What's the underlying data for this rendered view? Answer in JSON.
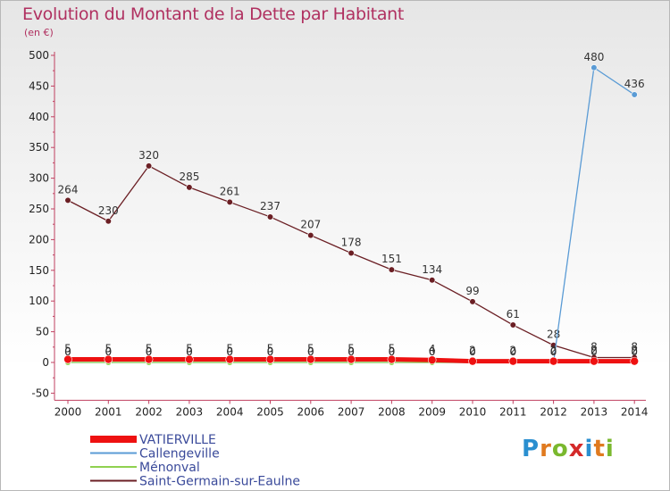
{
  "title": "Evolution du Montant de la Dette par Habitant",
  "subtitle": "(en €)",
  "logo": {
    "text": "Proxiti",
    "letter_colors": [
      "#2a8fd0",
      "#e07a1f",
      "#7ab82e",
      "#d42a2a",
      "#2a8fd0",
      "#e07a1f",
      "#7ab82e"
    ]
  },
  "chart_data": {
    "type": "line",
    "x": [
      "2000",
      "2001",
      "2002",
      "2003",
      "2004",
      "2005",
      "2006",
      "2007",
      "2008",
      "2009",
      "2010",
      "2011",
      "2012",
      "2013",
      "2014"
    ],
    "ylim": [
      -50,
      500
    ],
    "yticks": [
      -50,
      0,
      50,
      100,
      150,
      200,
      250,
      300,
      350,
      400,
      450,
      500
    ],
    "grid": false,
    "legend_position": "bottom-left",
    "series": [
      {
        "name": "Saint-Germain-sur-Eaulne",
        "color": "#6b1f24",
        "values": [
          264,
          230,
          320,
          285,
          261,
          237,
          207,
          178,
          151,
          134,
          99,
          61,
          28,
          8,
          8
        ],
        "labels": [
          "264",
          "230",
          "320",
          "285",
          "261",
          "237",
          "207",
          "178",
          "151",
          "134",
          "99",
          "61",
          "28",
          "8",
          "8"
        ]
      },
      {
        "name": "Callengeville",
        "color": "#5a9bd5",
        "values": [
          0,
          0,
          0,
          0,
          0,
          0,
          0,
          0,
          0,
          0,
          0,
          0,
          0,
          480,
          436
        ],
        "labels": [
          "0",
          "0",
          "0",
          "0",
          "0",
          "0",
          "0",
          "0",
          "0",
          "0",
          "0",
          "0",
          "0",
          "480",
          "436"
        ]
      },
      {
        "name": "Ménonval",
        "color": "#8fd14f",
        "values": [
          0,
          0,
          0,
          0,
          0,
          0,
          0,
          0,
          0,
          0,
          0,
          0,
          0,
          0,
          0
        ],
        "labels": [
          "0",
          "0",
          "0",
          "0",
          "0",
          "0",
          "0",
          "0",
          "0",
          "0",
          "0",
          "0",
          "0",
          "0",
          "0"
        ]
      },
      {
        "name": "VATIERVILLE",
        "color": "#ee1111",
        "values": [
          5,
          5,
          5,
          5,
          5,
          5,
          5,
          5,
          5,
          4,
          2,
          2,
          2,
          2,
          2
        ],
        "labels": [
          "5",
          "5",
          "5",
          "5",
          "5",
          "5",
          "5",
          "5",
          "5",
          "4",
          "2",
          "2",
          "2",
          "2",
          "2"
        ]
      }
    ],
    "legend": [
      "VATIERVILLE",
      "Callengeville",
      "Ménonval",
      "Saint-Germain-sur-Eaulne"
    ]
  }
}
